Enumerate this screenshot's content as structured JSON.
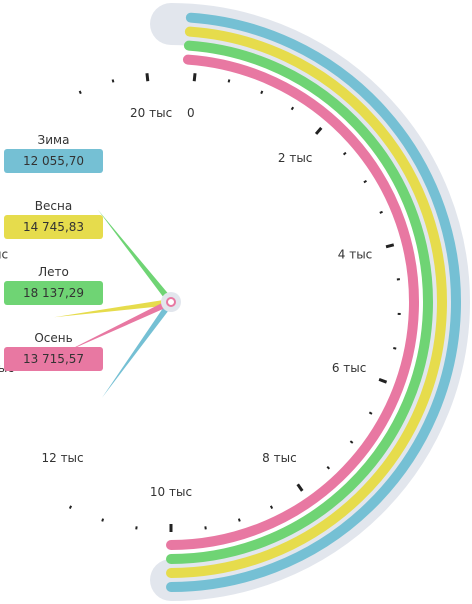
{
  "chart_data": {
    "type": "gauge",
    "range": [
      0,
      20000
    ],
    "tick_labels": [
      "0",
      "2 тыс",
      "4 тыс",
      "6 тыс",
      "8 тыс",
      "10 тыс",
      "12 тыс",
      "14 тыс",
      "16 тыс",
      "18 тыс",
      "20 тыс"
    ],
    "series": [
      {
        "name": "Зима",
        "value": 12055.7,
        "display": "12 055,70",
        "color": "#75c0d4"
      },
      {
        "name": "Весна",
        "value": 14745.83,
        "display": "14 745,83",
        "color": "#e6dc4c"
      },
      {
        "name": "Лето",
        "value": 18137.29,
        "display": "18 137,29",
        "color": "#6fd474"
      },
      {
        "name": "Осень",
        "value": 13715.57,
        "display": "13 715,57",
        "color": "#e878a2"
      }
    ],
    "track_color": "#e2e6ed"
  }
}
